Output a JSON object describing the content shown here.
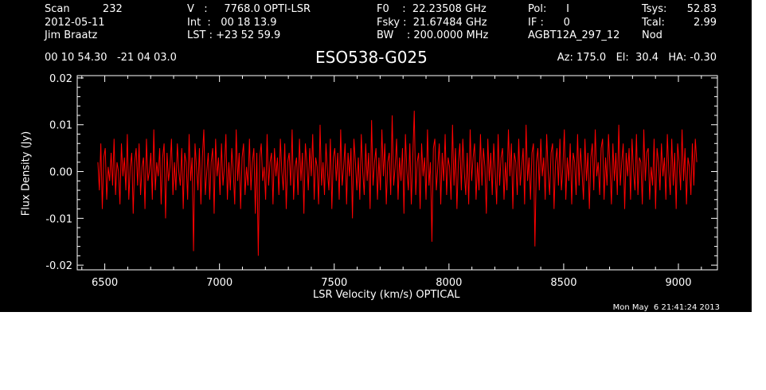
{
  "header": {
    "col1": [
      "Scan          232",
      "2012-05-11",
      "Jim Braatz"
    ],
    "col2": [
      "V   :     7768.0 OPTI-LSR",
      "Int  :   00 18 13.9",
      "LST : +23 52 59.9"
    ],
    "col3": [
      "F0    :  22.23508 GHz",
      "Fsky :  21.67484 GHz",
      "BW    : 200.0000 MHz"
    ],
    "col4": [
      "Pol:      I",
      "IF :      0",
      "AGBT12A_297_12"
    ],
    "col5": [
      "Tsys:",
      "Tcal:",
      "Nod"
    ],
    "col6": [
      "52.83",
      "2.99",
      ""
    ],
    "coords": "00 10 54.30   -21 04 03.0",
    "source": "ESO538-G025",
    "pointing": "Az: 175.0   El:  30.4   HA: -0.30"
  },
  "footer": {
    "datestamp": "Mon May  6 21:41:24 2013"
  },
  "colors": {
    "background": "#000000",
    "axes": "#ffffff",
    "trace": "#ff0000"
  },
  "chart_data": {
    "type": "line",
    "xlabel": "LSR Velocity (km/s) OPTICAL",
    "ylabel": "Flux Density (Jy)",
    "xlim": [
      6380,
      9170
    ],
    "ylim": [
      -0.021,
      0.0205
    ],
    "xticks": [
      6500,
      7000,
      7500,
      8000,
      8500,
      9000
    ],
    "xtick_labels": [
      "6500",
      "7000",
      "7500",
      "8000",
      "8500",
      "9000"
    ],
    "yticks": [
      -0.02,
      -0.01,
      0.0,
      0.01,
      0.02
    ],
    "ytick_labels": [
      "-0.02",
      "-0.01",
      "0.00",
      "0.01",
      "0.02"
    ],
    "series": [
      {
        "x_start": 6470,
        "x_end": 9080,
        "values": [
          0.002,
          -0.004,
          0.006,
          -0.008,
          0.003,
          0.005,
          -0.006,
          0.001,
          -0.002,
          0.004,
          -0.003,
          0.007,
          -0.005,
          0.002,
          0.0,
          -0.007,
          0.006,
          -0.001,
          0.003,
          -0.004,
          0.008,
          -0.006,
          0.001,
          0.004,
          -0.009,
          0.002,
          0.005,
          -0.003,
          0.006,
          -0.005,
          0.001,
          0.003,
          -0.008,
          0.007,
          -0.002,
          0.0,
          0.004,
          -0.006,
          0.009,
          -0.004,
          0.002,
          -0.001,
          0.005,
          -0.007,
          0.003,
          0.006,
          -0.01,
          0.004,
          -0.002,
          0.001,
          0.007,
          -0.005,
          0.002,
          -0.004,
          0.006,
          0.0,
          -0.003,
          0.005,
          -0.008,
          0.004,
          0.002,
          -0.006,
          0.008,
          -0.002,
          0.003,
          -0.017,
          0.006,
          0.001,
          -0.004,
          0.005,
          -0.007,
          0.003,
          0.009,
          -0.005,
          0.0,
          0.004,
          -0.006,
          0.002,
          0.005,
          -0.009,
          0.007,
          -0.001,
          0.003,
          -0.005,
          0.006,
          -0.003,
          0.001,
          0.008,
          -0.006,
          0.002,
          -0.004,
          0.005,
          0.0,
          -0.007,
          0.009,
          -0.002,
          0.004,
          -0.008,
          0.003,
          0.006,
          -0.005,
          0.001,
          -0.003,
          0.007,
          -0.004,
          0.002,
          0.005,
          -0.009,
          0.004,
          -0.018,
          0.003,
          0.006,
          -0.002,
          0.001,
          -0.006,
          0.008,
          -0.003,
          0.002,
          0.004,
          -0.007,
          0.005,
          -0.001,
          0.003,
          -0.005,
          0.007,
          0.0,
          -0.004,
          0.006,
          -0.008,
          0.002,
          0.004,
          -0.003,
          0.009,
          -0.006,
          0.001,
          0.003,
          -0.005,
          0.007,
          -0.002,
          0.004,
          -0.009,
          0.006,
          0.002,
          -0.004,
          0.005,
          -0.001,
          0.008,
          -0.006,
          0.003,
          0.001,
          -0.007,
          0.01,
          -0.003,
          0.002,
          -0.005,
          0.006,
          0.0,
          -0.004,
          0.007,
          -0.008,
          0.003,
          0.005,
          -0.002,
          0.004,
          -0.006,
          0.009,
          -0.003,
          0.001,
          0.006,
          -0.007,
          0.004,
          -0.001,
          0.005,
          -0.01,
          0.007,
          0.002,
          -0.004,
          0.003,
          -0.006,
          0.008,
          0.0,
          -0.005,
          0.006,
          -0.002,
          0.004,
          -0.008,
          0.011,
          -0.003,
          0.002,
          0.005,
          -0.006,
          0.003,
          -0.004,
          0.009,
          -0.001,
          0.006,
          -0.007,
          0.002,
          0.004,
          -0.005,
          0.012,
          -0.003,
          0.001,
          0.007,
          -0.006,
          0.003,
          -0.002,
          0.005,
          -0.009,
          0.008,
          0.0,
          -0.004,
          0.006,
          -0.007,
          0.003,
          0.013,
          -0.005,
          0.002,
          0.004,
          -0.008,
          0.006,
          -0.001,
          0.003,
          -0.006,
          0.009,
          -0.003,
          0.002,
          -0.015,
          0.005,
          0.007,
          -0.004,
          0.001,
          0.006,
          -0.007,
          0.004,
          -0.002,
          0.008,
          -0.005,
          0.003,
          0.001,
          -0.006,
          0.01,
          -0.003,
          0.005,
          -0.008,
          0.002,
          0.006,
          -0.004,
          0.007,
          0.0,
          -0.005,
          0.004,
          -0.007,
          0.009,
          -0.002,
          0.003,
          0.006,
          -0.006,
          0.002,
          -0.004,
          0.008,
          -0.003,
          0.005,
          0.001,
          -0.009,
          0.007,
          -0.002,
          0.004,
          -0.005,
          0.006,
          0.0,
          -0.007,
          0.008,
          -0.003,
          0.003,
          0.005,
          -0.006,
          0.002,
          -0.004,
          0.009,
          -0.001,
          0.006,
          -0.008,
          0.004,
          0.002,
          -0.005,
          0.007,
          -0.003,
          0.001,
          0.005,
          -0.007,
          0.01,
          -0.002,
          0.003,
          -0.006,
          0.004,
          0.006,
          -0.016,
          0.002,
          0.005,
          -0.004,
          0.007,
          -0.001,
          0.003,
          -0.006,
          0.008,
          0.0,
          -0.005,
          0.004,
          0.006,
          -0.008,
          0.002,
          0.005,
          -0.003,
          0.007,
          -0.004,
          0.001,
          0.009,
          -0.006,
          0.003,
          -0.002,
          0.006,
          -0.007,
          0.004,
          0.002,
          -0.005,
          0.008,
          -0.003,
          0.005,
          0.0,
          -0.006,
          0.007,
          -0.002,
          0.004,
          -0.008,
          0.003,
          0.006,
          -0.004,
          0.009,
          -0.001,
          0.002,
          -0.005,
          0.005,
          0.007,
          -0.006,
          0.003,
          -0.003,
          0.008,
          0.001,
          -0.007,
          0.006,
          -0.002,
          0.004,
          -0.005,
          0.01,
          -0.003,
          0.002,
          0.006,
          -0.008,
          0.004,
          -0.001,
          0.005,
          -0.006,
          0.007,
          0.0,
          -0.004,
          0.008,
          -0.005,
          0.003,
          0.002,
          -0.007,
          0.009,
          -0.002,
          0.004,
          0.005,
          -0.006,
          0.001,
          -0.003,
          0.007,
          -0.008,
          0.005,
          0.002,
          -0.004,
          0.006,
          -0.001,
          0.003,
          -0.006,
          0.008,
          0.0,
          -0.005,
          0.007,
          -0.003,
          0.004,
          -0.008,
          0.006,
          0.002,
          -0.004,
          0.009,
          -0.002,
          0.005,
          -0.007,
          0.003,
          0.001,
          -0.005,
          0.006,
          -0.003,
          0.007,
          0.002
        ]
      }
    ]
  }
}
